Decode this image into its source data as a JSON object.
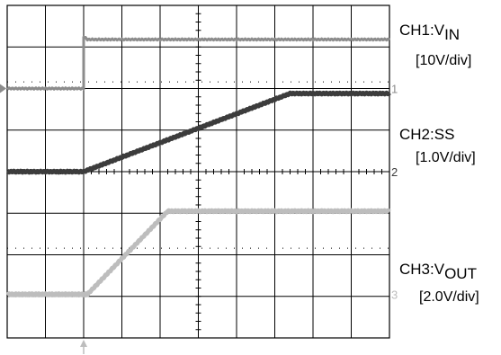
{
  "channels": [
    {
      "id": "ch1",
      "name": "CH1:V",
      "sub": "IN",
      "scale": "[10V/div]",
      "marker": "1",
      "color": "#8c8c8c"
    },
    {
      "id": "ch2",
      "name": "CH2:SS",
      "sub": "",
      "scale": "[1.0V/div]",
      "marker": "2",
      "color": "#3c3c3c"
    },
    {
      "id": "ch3",
      "name": "CH3:V",
      "sub": "OUT",
      "scale": "[2.0V/div]",
      "marker": "3",
      "color": "#bdbdbd"
    }
  ],
  "chart_data": {
    "type": "line",
    "grid": true,
    "divisions": {
      "x": 10,
      "y": 8
    },
    "xlim": [
      0,
      10
    ],
    "ylim": [
      -4,
      4
    ],
    "trigger_position_div": 2.0,
    "series": [
      {
        "name": "CH1:VIN",
        "color": "#8c8c8c",
        "width": 3,
        "x": [
          0,
          2.0,
          2.0,
          2.1,
          10
        ],
        "y": [
          2.0,
          2.0,
          3.25,
          3.18,
          3.18
        ]
      },
      {
        "name": "CH2:SS",
        "color": "#3c3c3c",
        "width": 5,
        "x": [
          0,
          2.0,
          7.4,
          10
        ],
        "y": [
          0.0,
          0.0,
          1.88,
          1.88
        ]
      },
      {
        "name": "CH3:VOUT",
        "color": "#bdbdbd",
        "width": 5,
        "x": [
          0,
          2.1,
          4.2,
          10
        ],
        "y": [
          -2.95,
          -2.95,
          -0.95,
          -0.95
        ]
      }
    ]
  }
}
